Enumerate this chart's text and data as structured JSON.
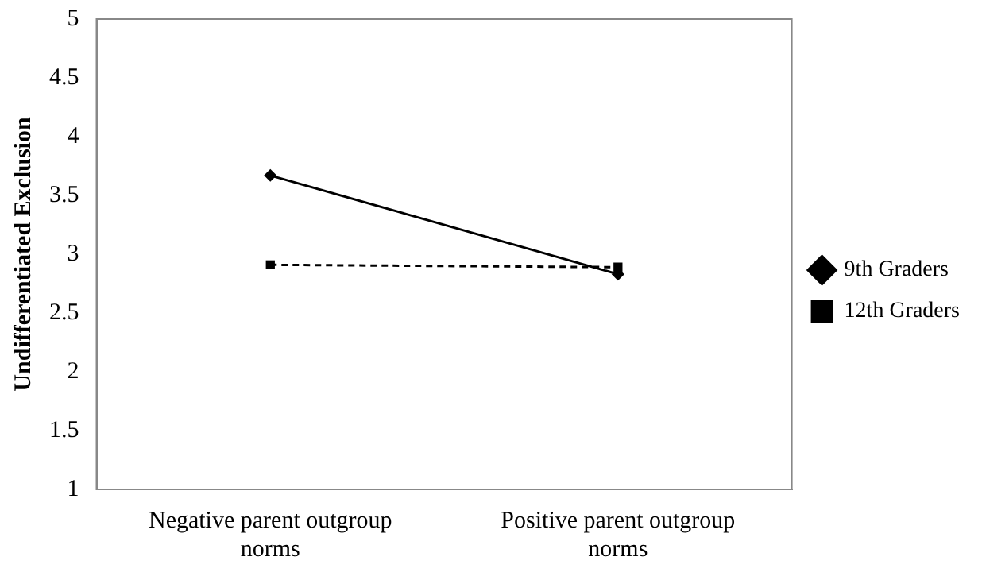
{
  "chart_data": {
    "type": "line",
    "ylabel": "Undifferentiated Exclusion",
    "categories": [
      "Negative parent outgroup norms",
      "Positive parent outgroup norms"
    ],
    "series": [
      {
        "name": "9th Graders",
        "color": "#000000",
        "values": [
          3.67,
          2.83
        ],
        "marker": "diamond",
        "line_style": "solid"
      },
      {
        "name": "12th Graders",
        "color": "#000000",
        "values": [
          2.91,
          2.89
        ],
        "marker": "square",
        "line_style": "dashed"
      }
    ],
    "ylim": [
      1,
      5
    ],
    "yticks": [
      1,
      1.5,
      2,
      2.5,
      3,
      3.5,
      4,
      4.5,
      5
    ],
    "grid": false,
    "legend": "right"
  }
}
